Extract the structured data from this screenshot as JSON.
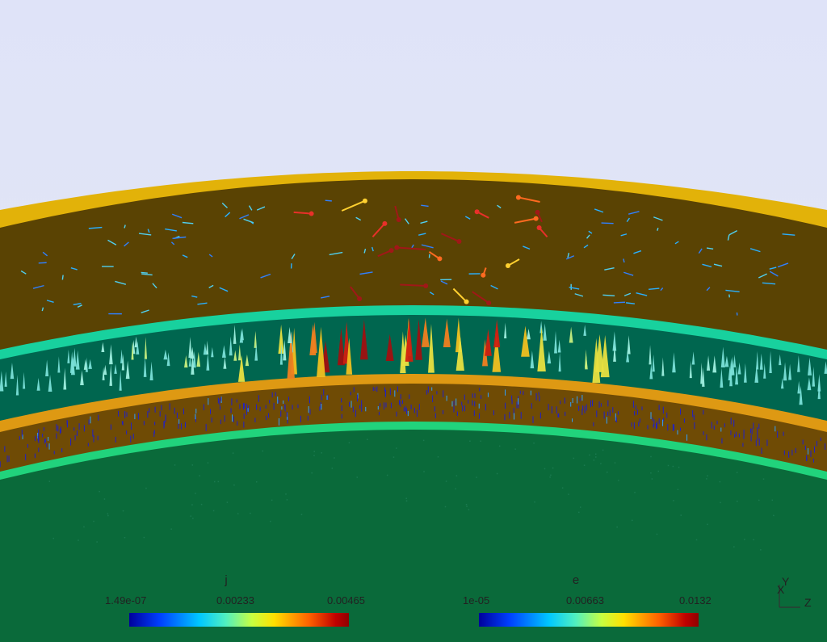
{
  "colors": {
    "sky": "#dfe3f8",
    "crust_rim": "#e2b209",
    "upper_band": "#5a4303",
    "cyan_rim": "#18d19e",
    "teal_band": "#00664f",
    "orange_rim": "#de9913",
    "lower_brown_band": "#6f4b05",
    "green_rim": "#21d37c",
    "core": "#0a6a3a"
  },
  "legends": [
    {
      "title": "j",
      "min_label": "1.49e-07",
      "mid_label": "0.00233",
      "max_label": "0.00465",
      "colormap": "blue-cyan-yellow-red"
    },
    {
      "title": "e",
      "min_label": "1e-05",
      "mid_label": "0.00663",
      "max_label": "0.0132",
      "colormap": "blue-cyan-yellow-red"
    }
  ],
  "axes": {
    "y_label": "Y",
    "x_label": "X",
    "z_label": "Z"
  }
}
